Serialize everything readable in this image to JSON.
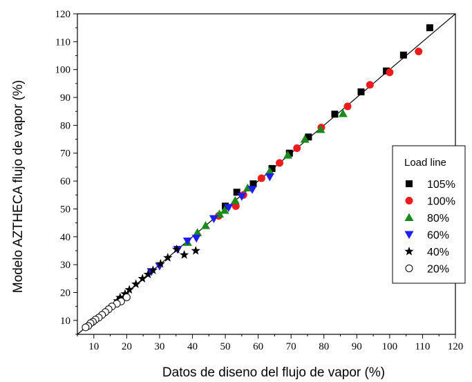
{
  "chart_data": {
    "type": "scatter",
    "title": "",
    "xlabel": "Datos de diseno del flujo de vapor (%)",
    "ylabel": "Modelo AZTHECA flujo de vapor (%)",
    "xlim": [
      5,
      120
    ],
    "ylim": [
      5,
      120
    ],
    "xticks": [
      10,
      20,
      30,
      40,
      50,
      60,
      70,
      80,
      90,
      100,
      110,
      120
    ],
    "yticks": [
      10,
      20,
      30,
      40,
      50,
      60,
      70,
      80,
      90,
      100,
      110,
      120
    ],
    "grid": false,
    "legend": {
      "title": "Load line",
      "position": "right"
    },
    "reference_line": {
      "from": [
        5,
        5
      ],
      "to": [
        120,
        120
      ]
    },
    "series": [
      {
        "name": "105%",
        "marker": "square",
        "color": "#000000",
        "points": [
          [
            112.2,
            115
          ],
          [
            104.2,
            105.2
          ],
          [
            99.0,
            99.5
          ],
          [
            91.3,
            92.0
          ],
          [
            83.3,
            84.0
          ],
          [
            75.3,
            75.8
          ],
          [
            69.5,
            70.0
          ],
          [
            64.2,
            64.5
          ],
          [
            58.5,
            59.0
          ],
          [
            53.5,
            56.0
          ],
          [
            50.0,
            51.0
          ]
        ]
      },
      {
        "name": "100%",
        "marker": "circle",
        "color": "#ee1c1c",
        "points": [
          [
            108.8,
            106.5
          ],
          [
            100.0,
            99.0
          ],
          [
            94.0,
            94.5
          ],
          [
            87.2,
            86.8
          ],
          [
            79.2,
            79.2
          ],
          [
            71.8,
            71.8
          ],
          [
            66.5,
            66.5
          ],
          [
            61.0,
            61.0
          ],
          [
            55.5,
            55.0
          ],
          [
            53.2,
            51.0
          ],
          [
            48.0,
            47.5
          ]
        ]
      },
      {
        "name": "80%",
        "marker": "triangle-up",
        "color": "#1a8a1a",
        "points": [
          [
            85.8,
            84.2
          ],
          [
            79.0,
            78.5
          ],
          [
            74.2,
            75.0
          ],
          [
            69.0,
            69.3
          ],
          [
            63.5,
            63.5
          ],
          [
            56.8,
            57.5
          ],
          [
            53.0,
            53.0
          ],
          [
            49.8,
            49.5
          ],
          [
            48.2,
            48.2
          ],
          [
            44.0,
            44.0
          ],
          [
            41.5,
            41.5
          ],
          [
            38.5,
            38.0
          ]
        ]
      },
      {
        "name": "60%",
        "marker": "triangle-down",
        "color": "#1e1ef0",
        "points": [
          [
            63.5,
            61.5
          ],
          [
            58.2,
            57.0
          ],
          [
            55.0,
            54.5
          ],
          [
            51.0,
            50.5
          ],
          [
            46.5,
            46.5
          ],
          [
            41.2,
            39.5
          ],
          [
            38.5,
            38.5
          ],
          [
            35.5,
            35.5
          ],
          [
            30.0,
            29.5
          ],
          [
            27.5,
            27.5
          ]
        ]
      },
      {
        "name": "40%",
        "marker": "star",
        "color": "#000000",
        "points": [
          [
            41.0,
            35.0
          ],
          [
            37.5,
            33.5
          ],
          [
            35.2,
            35.5
          ],
          [
            32.5,
            32.5
          ],
          [
            30.3,
            30.3
          ],
          [
            28.0,
            28.0
          ],
          [
            26.5,
            26.5
          ],
          [
            24.8,
            25.0
          ],
          [
            22.8,
            23.0
          ],
          [
            20.8,
            21.0
          ],
          [
            19.5,
            19.5
          ],
          [
            18.0,
            18.2
          ],
          [
            17.2,
            17.0
          ]
        ]
      },
      {
        "name": "20%",
        "marker": "open-circle",
        "color": "#000000",
        "points": [
          [
            20.0,
            18.3
          ],
          [
            18.3,
            16.8
          ],
          [
            17.0,
            16.0
          ],
          [
            15.5,
            15.0
          ],
          [
            14.5,
            14.0
          ],
          [
            13.5,
            13.0
          ],
          [
            12.5,
            12.0
          ],
          [
            11.5,
            11.0
          ],
          [
            10.5,
            10.3
          ],
          [
            9.7,
            9.5
          ],
          [
            9.0,
            9.0
          ],
          [
            8.3,
            8.0
          ],
          [
            7.5,
            7.5
          ]
        ]
      }
    ]
  }
}
